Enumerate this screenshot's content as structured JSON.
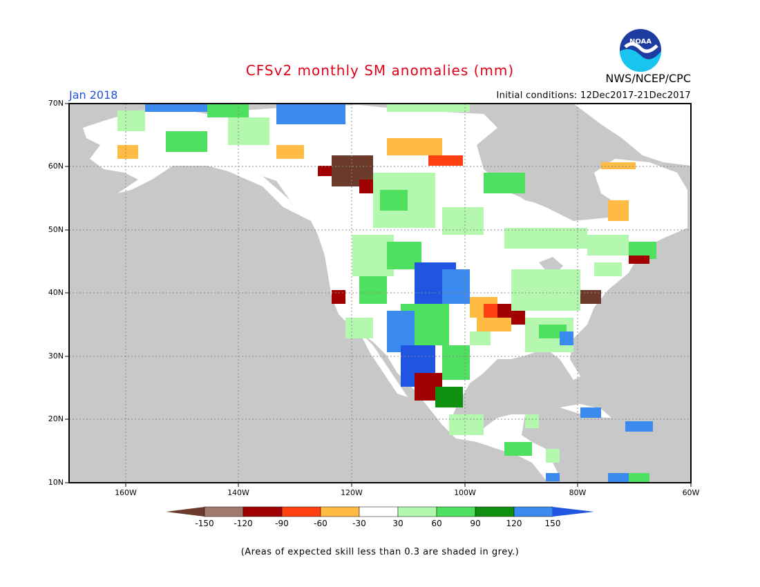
{
  "title": "CFSv2 monthly SM anomalies (mm)",
  "valid_month": "Jan 2018",
  "org": "NWS/NCEP/CPC",
  "logo_text": "NOAA",
  "initial_conditions": "Initial conditions: 12Dec2017-21Dec2017",
  "lat_labels": [
    "70N",
    "60N",
    "50N",
    "40N",
    "30N",
    "20N",
    "10N"
  ],
  "lon_labels": [
    "160W",
    "140W",
    "120W",
    "100W",
    "80W",
    "60W"
  ],
  "colorbar": {
    "colors": [
      "#6b3a2a",
      "#a27a6e",
      "#a00000",
      "#ff4010",
      "#ffbb44",
      "#ffffff",
      "#b4f8b0",
      "#50e060",
      "#109010",
      "#3a8af0",
      "#1f55e0"
    ],
    "labels": [
      "-150",
      "-120",
      "-90",
      "-60",
      "-30",
      "30",
      "60",
      "90",
      "120",
      "150"
    ]
  },
  "skill_note": "(Areas of expected skill less than 0.3 are shaded in grey.)",
  "colors": {
    "ocean": "#c8c8c8",
    "title": "#e0001a",
    "month": "#1f4fe0"
  }
}
